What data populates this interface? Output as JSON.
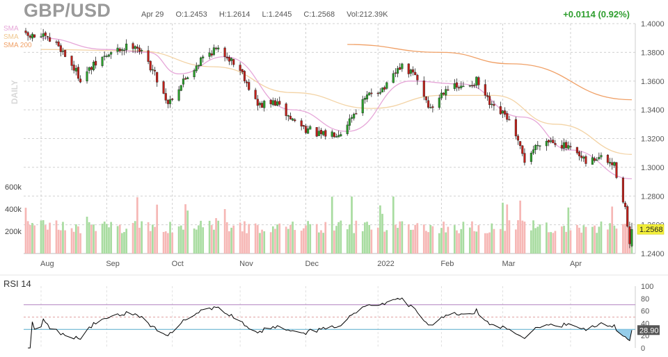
{
  "header": {
    "ticker": "GBP/USD",
    "date": "Apr 29",
    "open": "O:1.2453",
    "high": "H:1.2614",
    "low": "L:1.2445",
    "close": "C:1.2568",
    "volume": "Vol:212.39K",
    "change": "+0.0114 (0.92%)"
  },
  "legend": {
    "sma1": "SMA",
    "sma2": "SMA",
    "sma3": "SMA 200",
    "period": "DAILY"
  },
  "rsi": {
    "label": "RSI 14",
    "value_label": "28.90"
  },
  "colors": {
    "up": "#2ca02c",
    "down": "#c0201a",
    "up_vol": "#a8dca0",
    "down_vol": "#f6b7b5",
    "sma_fast": "#e6a6d8",
    "sma_mid": "#f3d3a5",
    "sma_200": "#f0a066",
    "rsi_line": "#000000",
    "rsi_70": "#b080c0",
    "rsi_30": "#55aacc"
  },
  "chart_data": [
    {
      "type": "candlestick",
      "title": "GBP/USD",
      "price_ticks": [
        "1.4000",
        "1.3800",
        "1.3600",
        "1.3400",
        "1.3200",
        "1.3000",
        "1.2800",
        "1.2600",
        "1.2400"
      ],
      "price_range": [
        1.24,
        1.4
      ],
      "volume_ticks": [
        "600k",
        "400k",
        "200k"
      ],
      "x_labels": [
        "Aug",
        "Sep",
        "Oct",
        "Nov",
        "Dec",
        "2022",
        "Feb",
        "Mar",
        "Apr"
      ],
      "last_price_label": "1.2568",
      "close_anchors": [
        [
          "2021-08-02",
          1.391
        ],
        [
          "2021-08-10",
          1.385
        ],
        [
          "2021-08-20",
          1.362
        ],
        [
          "2021-08-30",
          1.376
        ],
        [
          "2021-09-07",
          1.382
        ],
        [
          "2021-09-14",
          1.386
        ],
        [
          "2021-09-22",
          1.368
        ],
        [
          "2021-09-29",
          1.345
        ],
        [
          "2021-10-06",
          1.36
        ],
        [
          "2021-10-14",
          1.375
        ],
        [
          "2021-10-20",
          1.382
        ],
        [
          "2021-10-26",
          1.378
        ],
        [
          "2021-11-02",
          1.366
        ],
        [
          "2021-11-09",
          1.343
        ],
        [
          "2021-11-17",
          1.345
        ],
        [
          "2021-11-24",
          1.334
        ],
        [
          "2021-12-01",
          1.327
        ],
        [
          "2021-12-08",
          1.322
        ],
        [
          "2021-12-17",
          1.325
        ],
        [
          "2021-12-24",
          1.34
        ],
        [
          "2021-12-31",
          1.352
        ],
        [
          "2022-01-07",
          1.356
        ],
        [
          "2022-01-13",
          1.37
        ],
        [
          "2022-01-20",
          1.364
        ],
        [
          "2022-01-27",
          1.34
        ],
        [
          "2022-02-03",
          1.356
        ],
        [
          "2022-02-10",
          1.355
        ],
        [
          "2022-02-17",
          1.36
        ],
        [
          "2022-02-24",
          1.341
        ],
        [
          "2022-03-03",
          1.335
        ],
        [
          "2022-03-11",
          1.305
        ],
        [
          "2022-03-18",
          1.318
        ],
        [
          "2022-03-24",
          1.319
        ],
        [
          "2022-03-31",
          1.313
        ],
        [
          "2022-04-08",
          1.303
        ],
        [
          "2022-04-14",
          1.307
        ],
        [
          "2022-04-21",
          1.301
        ],
        [
          "2022-04-26",
          1.272
        ],
        [
          "2022-04-28",
          1.244
        ],
        [
          "2022-04-29",
          1.2568
        ]
      ],
      "sma_fast_points": [
        [
          "2021-08-02",
          1.39
        ],
        [
          "2021-09-01",
          1.382
        ],
        [
          "2021-09-20",
          1.38
        ],
        [
          "2021-10-04",
          1.365
        ],
        [
          "2021-10-25",
          1.377
        ],
        [
          "2021-11-25",
          1.34
        ],
        [
          "2021-12-20",
          1.325
        ],
        [
          "2022-01-18",
          1.36
        ],
        [
          "2022-02-10",
          1.358
        ],
        [
          "2022-03-10",
          1.335
        ],
        [
          "2022-04-01",
          1.312
        ],
        [
          "2022-04-29",
          1.292
        ]
      ],
      "sma_mid_points": [
        [
          "2021-08-02",
          1.382
        ],
        [
          "2021-09-15",
          1.381
        ],
        [
          "2021-10-20",
          1.37
        ],
        [
          "2021-11-25",
          1.352
        ],
        [
          "2021-12-31",
          1.341
        ],
        [
          "2022-02-01",
          1.35
        ],
        [
          "2022-02-25",
          1.35
        ],
        [
          "2022-03-25",
          1.33
        ],
        [
          "2022-04-29",
          1.309
        ]
      ],
      "sma_200_points": [
        [
          "2021-12-20",
          1.3855
        ],
        [
          "2022-02-01",
          1.38
        ],
        [
          "2022-03-05",
          1.372
        ],
        [
          "2022-04-29",
          1.347
        ]
      ]
    },
    {
      "type": "line",
      "title": "RSI 14",
      "y_ticks": [
        "100",
        "80",
        "60",
        "40",
        "20",
        "0"
      ],
      "ylim": [
        0,
        100
      ],
      "levels": [
        70,
        30
      ],
      "last_value": 28.9
    }
  ]
}
